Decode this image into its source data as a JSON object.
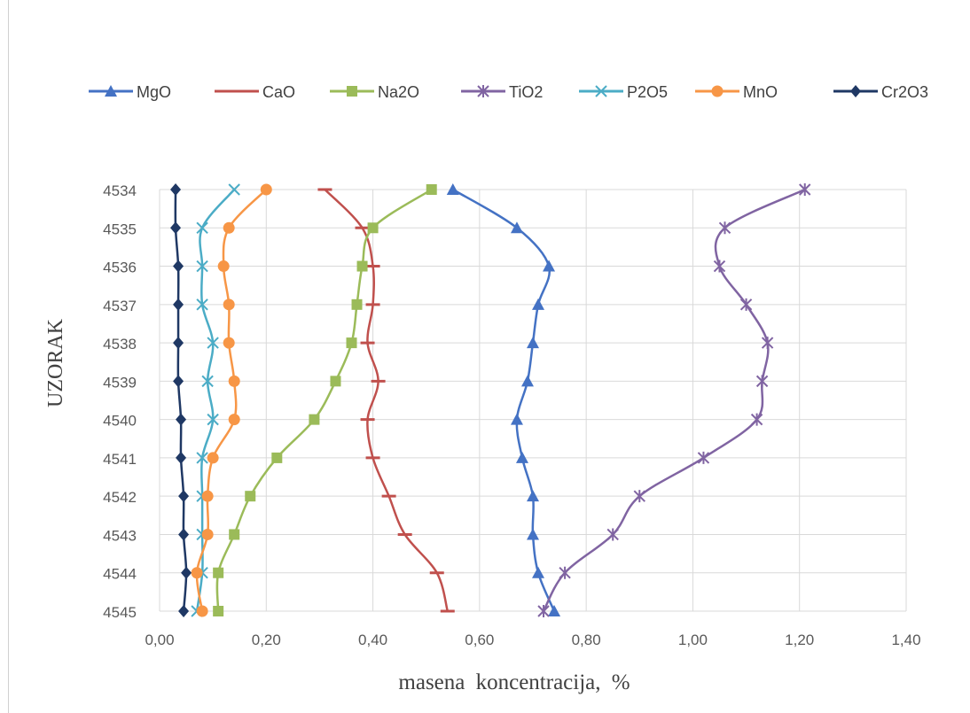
{
  "chart_data": {
    "type": "line",
    "xlabel": "masena koncentracija, %",
    "ylabel": "UZORAK",
    "xlim": [
      0,
      1.4
    ],
    "x_ticks": [
      "0,00",
      "0,20",
      "0,40",
      "0,60",
      "0,80",
      "1,00",
      "1,20",
      "1,40"
    ],
    "categories": [
      "4534",
      "4535",
      "4536",
      "4537",
      "4538",
      "4539",
      "4540",
      "4541",
      "4542",
      "4543",
      "4544",
      "4545"
    ],
    "grid": true,
    "legend_position": "top",
    "series": [
      {
        "name": "MgO",
        "color": "#4472c4",
        "marker": "triangle",
        "values": [
          0.55,
          0.67,
          0.73,
          0.71,
          0.7,
          0.69,
          0.67,
          0.68,
          0.7,
          0.7,
          0.71,
          0.74
        ]
      },
      {
        "name": "CaO",
        "color": "#c0504d",
        "marker": "dash",
        "values": [
          0.31,
          0.38,
          0.4,
          0.4,
          0.39,
          0.41,
          0.39,
          0.4,
          0.43,
          0.46,
          0.52,
          0.54
        ]
      },
      {
        "name": "Na2O",
        "color": "#9bbb59",
        "marker": "square",
        "values": [
          0.51,
          0.4,
          0.38,
          0.37,
          0.36,
          0.33,
          0.29,
          0.22,
          0.17,
          0.14,
          0.11,
          0.11
        ]
      },
      {
        "name": "TiO2",
        "color": "#8064a2",
        "marker": "star",
        "values": [
          1.21,
          1.06,
          1.05,
          1.1,
          1.14,
          1.13,
          1.12,
          1.02,
          0.9,
          0.85,
          0.76,
          0.72
        ]
      },
      {
        "name": "P2O5",
        "color": "#4bacc6",
        "marker": "x",
        "values": [
          0.14,
          0.08,
          0.08,
          0.08,
          0.1,
          0.09,
          0.1,
          0.08,
          0.08,
          0.08,
          0.08,
          0.07
        ]
      },
      {
        "name": "MnO",
        "color": "#f79646",
        "marker": "circle",
        "values": [
          0.2,
          0.13,
          0.12,
          0.13,
          0.13,
          0.14,
          0.14,
          0.1,
          0.09,
          0.09,
          0.07,
          0.08
        ]
      },
      {
        "name": "Cr2O3",
        "color": "#1f3864",
        "marker": "diamond",
        "values": [
          0.03,
          0.03,
          0.035,
          0.035,
          0.035,
          0.035,
          0.04,
          0.04,
          0.045,
          0.045,
          0.05,
          0.045
        ]
      }
    ]
  }
}
